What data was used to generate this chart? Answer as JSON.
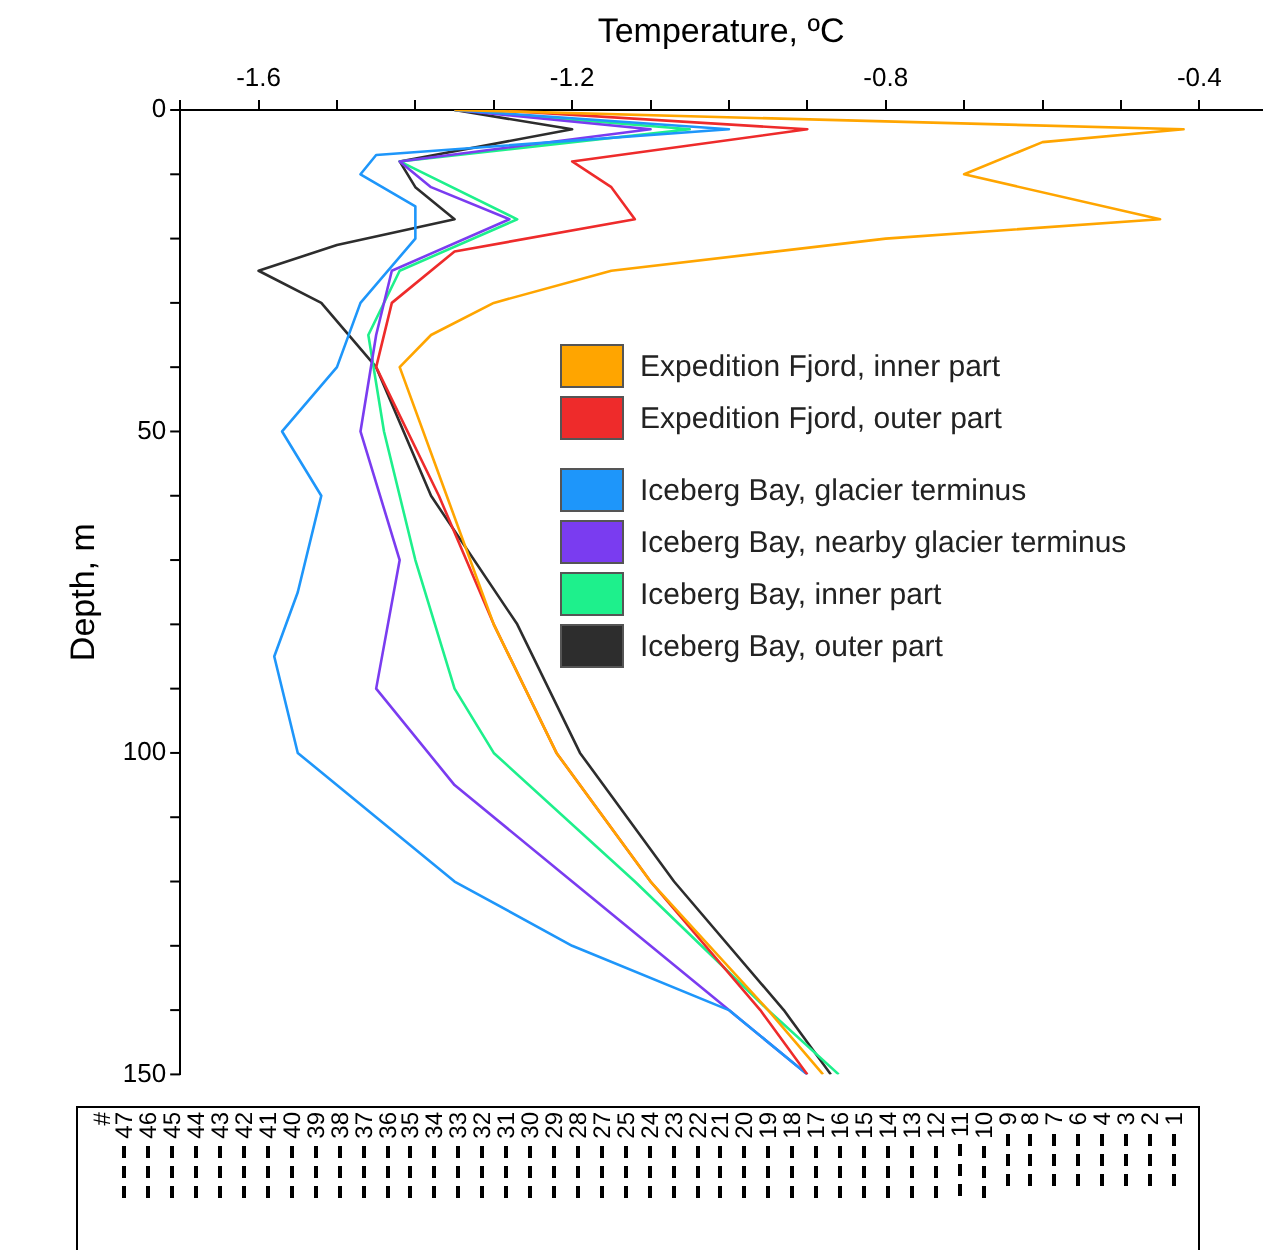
{
  "chart_data": {
    "type": "line",
    "xlabel": "Temperature, ºC",
    "ylabel": "Depth, m",
    "xlim": [
      -1.7,
      -0.32
    ],
    "xticks": [
      {
        "value": -1.7,
        "label": null
      },
      -1.6,
      {
        "value": -1.5,
        "label": null
      },
      {
        "value": -1.4,
        "label": null
      },
      {
        "value": -1.3,
        "label": null
      },
      -1.2,
      {
        "value": -1.1,
        "label": null
      },
      {
        "value": -1.0,
        "label": null
      },
      {
        "value": -0.9,
        "label": null
      },
      -0.8,
      {
        "value": -0.7,
        "label": null
      },
      {
        "value": -0.6,
        "label": null
      },
      {
        "value": -0.5,
        "label": null
      },
      -0.4
    ],
    "ylim": [
      150,
      0
    ],
    "yticks": [
      0,
      {
        "value": 10,
        "label": null
      },
      {
        "value": 20,
        "label": null
      },
      {
        "value": 30,
        "label": null
      },
      {
        "value": 40,
        "label": null
      },
      50,
      {
        "value": 60,
        "label": null
      },
      {
        "value": 70,
        "label": null
      },
      {
        "value": 80,
        "label": null
      },
      {
        "value": 90,
        "label": null
      },
      100,
      {
        "value": 110,
        "label": null
      },
      {
        "value": 120,
        "label": null
      },
      {
        "value": 130,
        "label": null
      },
      {
        "value": 140,
        "label": null
      },
      150
    ],
    "grid": false,
    "legend": "top right",
    "marker": "none",
    "line_style": "solid",
    "series": [
      {
        "name": "Expedition Fjord, inner part",
        "color": "#ffa500",
        "x": [
          -1.35,
          -0.42,
          -0.6,
          -0.7,
          -0.45,
          -0.8,
          -1.15,
          -1.3,
          -1.38,
          -1.42,
          -1.36,
          -1.3,
          -1.22,
          -1.1,
          -0.95,
          -0.88
        ],
        "values": [
          0,
          3,
          5,
          10,
          17,
          20,
          25,
          30,
          35,
          40,
          60,
          80,
          100,
          120,
          140,
          150
        ]
      },
      {
        "name": "Expedition Fjord, outer part",
        "color": "#ee2b2b",
        "x": [
          -1.3,
          -0.9,
          -1.2,
          -1.15,
          -1.12,
          -1.35,
          -1.43,
          -1.45,
          -1.37,
          -1.3,
          -1.22,
          -1.1,
          -0.96,
          -0.9
        ],
        "values": [
          0,
          3,
          8,
          12,
          17,
          22,
          30,
          40,
          60,
          80,
          100,
          120,
          140,
          150
        ]
      },
      {
        "name": "Iceberg Bay, glacier terminus",
        "color": "#1e96fa",
        "x": [
          -1.35,
          -1.0,
          -1.45,
          -1.47,
          -1.4,
          -1.4,
          -1.47,
          -1.5,
          -1.57,
          -1.52,
          -1.55,
          -1.58,
          -1.55,
          -1.45,
          -1.35,
          -1.2,
          -1.0,
          -0.9
        ],
        "values": [
          0,
          3,
          7,
          10,
          15,
          20,
          30,
          40,
          50,
          60,
          75,
          85,
          100,
          110,
          120,
          130,
          140,
          150
        ]
      },
      {
        "name": "Iceberg Bay, nearby glacier terminus",
        "color": "#7a3cf0",
        "x": [
          -1.35,
          -1.1,
          -1.42,
          -1.38,
          -1.28,
          -1.43,
          -1.45,
          -1.47,
          -1.42,
          -1.45,
          -1.35,
          -1.2,
          -1.0,
          -0.9
        ],
        "values": [
          0,
          3,
          8,
          12,
          17,
          25,
          35,
          50,
          70,
          90,
          105,
          120,
          140,
          150
        ]
      },
      {
        "name": "Iceberg Bay, inner part",
        "color": "#1ef08c",
        "x": [
          -1.35,
          -1.05,
          -1.42,
          -1.27,
          -1.42,
          -1.46,
          -1.44,
          -1.4,
          -1.35,
          -1.3,
          -1.12,
          -0.95,
          -0.86
        ],
        "values": [
          0,
          3,
          8,
          17,
          25,
          35,
          50,
          70,
          90,
          100,
          120,
          140,
          150
        ]
      },
      {
        "name": "Iceberg Bay, outer part",
        "color": "#2d2d2d",
        "x": [
          -1.35,
          -1.2,
          -1.42,
          -1.4,
          -1.35,
          -1.5,
          -1.6,
          -1.52,
          -1.45,
          -1.38,
          -1.27,
          -1.19,
          -1.07,
          -0.93,
          -0.87
        ],
        "values": [
          0,
          3,
          8,
          12,
          17,
          21,
          25,
          30,
          40,
          60,
          80,
          100,
          120,
          140,
          150
        ]
      }
    ],
    "annotations": [
      "#",
      "47",
      "46",
      "45",
      "44",
      "43",
      "42",
      "41",
      "40",
      "39",
      "38",
      "37",
      "36",
      "35",
      "34",
      "33",
      "32",
      "31",
      "30",
      "29",
      "28",
      "27",
      "25",
      "24",
      "23",
      "22",
      "21",
      "20",
      "19",
      "18",
      "17",
      "16",
      "15",
      "14",
      "13",
      "12",
      "11",
      "10",
      "9",
      "8",
      "7",
      "6",
      "4",
      "3",
      "2",
      "1"
    ]
  }
}
